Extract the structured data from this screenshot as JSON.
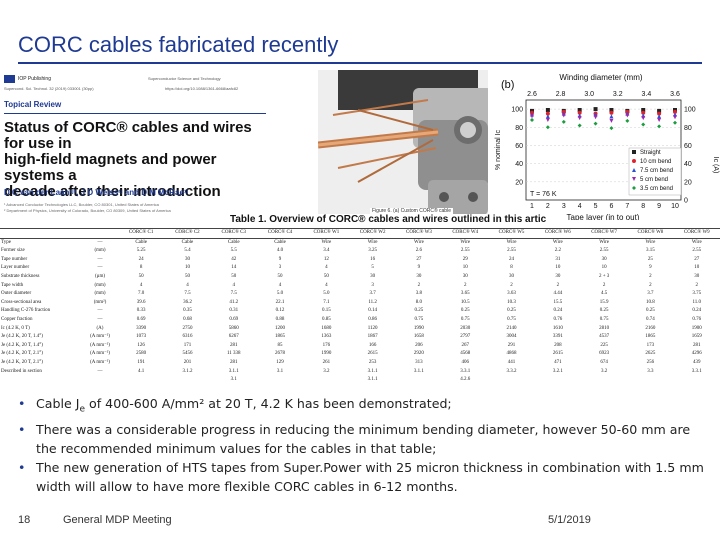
{
  "slide": {
    "title": "CORC cables fabricated recently"
  },
  "paper": {
    "publisher": "IOP Publishing",
    "journal": "Superconductor Science and Technology",
    "reference": "Supercond. Sci. Technol. 32 (2019) 033001 (30pp)",
    "doi": "https://doi.org/10.1088/1361-6668/aafc82",
    "section": "Topical Review",
    "title_lines": [
      "Status of CORC® cables and wires for use in",
      "high-field magnets and power systems a",
      "decade after their introduction"
    ],
    "authors": "D C van der Laan¹ʲ³, J D Weiss¹ʲ and D M McRae¹ʲ",
    "affiliations": [
      "¹ Advanced Conductor Technologies LLC, Boulder, CO 80301, United States of America",
      "² Department of Physics, University of Colorado, Boulder, CO 80309, United States of America"
    ]
  },
  "figure_caption": "Figure 6. (a) Custom CORC® cable",
  "table_title": "Table 1. Overview of CORC® cables and wires outlined in this artic",
  "table": {
    "headers": [
      "",
      "",
      "CORC® C1",
      "CORC® C2",
      "CORC® C3",
      "CORC® C4",
      "CORC® W1",
      "CORC® W2",
      "CORC® W3",
      "CORC® W4",
      "CORC® W5",
      "CORC® W6",
      "CORC® W7",
      "CORC® W8",
      "CORC® W9"
    ],
    "rows": [
      [
        "Type",
        "—",
        "Cable",
        "Cable",
        "Cable",
        "Cable",
        "Wire",
        "Wire",
        "Wire",
        "Wire",
        "Wire",
        "Wire",
        "Wire",
        "Wire",
        "Wire"
      ],
      [
        "Former size",
        "(mm)",
        "5.25",
        "5.4",
        "5.5",
        "4.0",
        "3.4",
        "3.25",
        "2.6",
        "2.55",
        "2.55",
        "2.2",
        "2.55",
        "3.15",
        "2.55"
      ],
      [
        "Tape number",
        "—",
        "24",
        "30",
        "42",
        "9",
        "12",
        "16",
        "27",
        "29",
        "24",
        "31",
        "30",
        "25",
        "27"
      ],
      [
        "Layer number",
        "—",
        "8",
        "10",
        "14",
        "3",
        "4",
        "5",
        "9",
        "10",
        "8",
        "10",
        "10",
        "9",
        "10"
      ],
      [
        "Substrate thickness",
        "(µm)",
        "50",
        "50",
        "50",
        "50",
        "50",
        "30",
        "30",
        "30",
        "30",
        "30",
        "2 + 3",
        "2",
        "30"
      ],
      [
        "Tape width",
        "(mm)",
        "4",
        "4",
        "4",
        "4",
        "4",
        "3",
        "2",
        "2",
        "2",
        "2",
        "2",
        "2",
        "2"
      ],
      [
        "Outer diameter",
        "(mm)",
        "7.0",
        "7.5",
        "7.5",
        "5.0",
        "5.0",
        "3.7",
        "3.8",
        "3.65",
        "3.63",
        "4.44",
        "4.5",
        "3.7",
        "3.75"
      ],
      [
        "Cross-sectional area",
        "(mm²)",
        "39.6",
        "36.2",
        "41.2",
        "22.1",
        "7.1",
        "11.2",
        "8.0",
        "10.5",
        "10.3",
        "15.5",
        "15.9",
        "10.8",
        "11.0"
      ],
      [
        "Handling C-276 fraction",
        "—",
        "0.33",
        "0.35",
        "0.31",
        "0.12",
        "0.15",
        "0.14",
        "0.25",
        "0.25",
        "0.25",
        "0.24",
        "0.25",
        "0.25",
        "0.24"
      ],
      [
        "Copper fraction",
        "—",
        "0.69",
        "0.68",
        "0.69",
        "0.88",
        "0.85",
        "0.86",
        "0.75",
        "0.75",
        "0.75",
        "0.76",
        "0.75",
        "0.74",
        "0.76"
      ],
      [
        "Ic (4.2 K, 0 T)",
        "(A)",
        "3390",
        "2750",
        "5860",
        "1200",
        "1680",
        "1120",
        "1990",
        "2030",
        "2140",
        "1610",
        "2810",
        "2160",
        "1900"
      ],
      [
        "Je (4.2 K, 20 T, 1.4°)",
        "(A mm⁻²)",
        "1073",
        "6316",
        "6267",
        "1865",
        "1363",
        "1867",
        "1658",
        "2797",
        "3004",
        "3391",
        "4537",
        "1865",
        "1659"
      ],
      [
        "Je (4.2 K, 20 T, 1.4°)",
        "(A mm⁻²)",
        "126",
        "171",
        "281",
        "85",
        "176",
        "166",
        "206",
        "267",
        "291",
        "208",
        "225",
        "173",
        "281"
      ],
      [
        "Je (4.2 K, 20 T, 2.1°)",
        "(A mm⁻²)",
        "2580",
        "5456",
        "11 338",
        "2678",
        "1990",
        "2615",
        "2920",
        "4568",
        "4868",
        "2615",
        "6923",
        "2625",
        "4296"
      ],
      [
        "Je (4.2 K, 20 T, 2.1°)",
        "(A mm⁻²)",
        "191",
        "201",
        "281",
        "129",
        "261",
        "253",
        "313",
        "406",
        "441",
        "471",
        "674",
        "256",
        "439"
      ],
      [
        "Described in section",
        "—",
        "4.1",
        "3.1.2",
        "3.1.1",
        "3.1",
        "3.2",
        "3.1.1",
        "3.1.1",
        "3.3.1",
        "3.3.2",
        "3.2.1",
        "3.2",
        "3.3",
        "3.3.1"
      ],
      [
        "",
        "",
        "",
        "",
        "3.1",
        "",
        "",
        "3.1.1",
        "",
        "4.2.6",
        "",
        "",
        "",
        "",
        ""
      ],
      [
        "",
        "",
        "",
        "",
        "5.1",
        "",
        "",
        "3.3",
        "",
        "3.3.1",
        "",
        "",
        "",
        "",
        ""
      ],
      [
        "Preferred measurement",
        "—",
        "A",
        "B",
        "D",
        "E",
        "F",
        "E, G",
        "C, H, I",
        "E, F",
        "F, I",
        "F",
        "F",
        "C, H",
        "J"
      ]
    ]
  },
  "chart_data": {
    "type": "scatter",
    "panel_label": "(b)",
    "top_axis_title": "Winding diameter (mm)",
    "top_ticks": [
      "2.6",
      "2.8",
      "3.0",
      "3.2",
      "3.4",
      "3.6"
    ],
    "x_ticks": [
      "1",
      "2",
      "3",
      "4",
      "5",
      "6",
      "7",
      "8",
      "9",
      "10"
    ],
    "xlabel": "Tape layer (in to out)",
    "ylabel_left": "% nominal Ic",
    "ylabel_right": "Ic (A)",
    "y_ticks_left": [
      "20",
      "40",
      "60",
      "80",
      "100"
    ],
    "y_ticks_right": [
      "0",
      "20",
      "40",
      "60",
      "80",
      "100"
    ],
    "annotation": "T = 76 K",
    "xlim": [
      1,
      10
    ],
    "ylim": [
      0,
      110
    ],
    "legend_position": "right",
    "series": [
      {
        "name": "Straight",
        "color": "#222222",
        "symbol": "square",
        "x": [
          1,
          2,
          3,
          4,
          5,
          6,
          7,
          8,
          9,
          10
        ],
        "y": [
          98,
          99,
          98,
          99,
          100,
          99,
          98,
          99,
          98,
          99
        ]
      },
      {
        "name": "10 cm bend",
        "color": "#e0232b",
        "symbol": "circle",
        "x": [
          1,
          2,
          3,
          4,
          5,
          6,
          7,
          8,
          9,
          10
        ],
        "y": [
          96,
          95,
          97,
          96,
          95,
          96,
          97,
          96,
          95,
          97
        ]
      },
      {
        "name": "7.5 cm bend",
        "color": "#2b4fd6",
        "symbol": "triangle",
        "x": [
          1,
          2,
          3,
          4,
          5,
          6,
          7,
          8,
          9,
          10
        ],
        "y": [
          94,
          92,
          95,
          93,
          94,
          92,
          95,
          93,
          92,
          94
        ]
      },
      {
        "name": "5 cm bend",
        "color": "#9c27b0",
        "symbol": "triangle-down",
        "x": [
          1,
          2,
          3,
          4,
          5,
          6,
          7,
          8,
          9,
          10
        ],
        "y": [
          92,
          88,
          93,
          90,
          91,
          87,
          93,
          90,
          88,
          91
        ]
      },
      {
        "name": "3.5 cm bend",
        "color": "#1b9e3e",
        "symbol": "diamond",
        "x": [
          1,
          2,
          3,
          4,
          5,
          6,
          7,
          8,
          9,
          10
        ],
        "y": [
          88,
          80,
          86,
          82,
          84,
          79,
          87,
          83,
          81,
          85
        ]
      }
    ]
  },
  "bullets": [
    {
      "lead": "Cable J",
      "sub": "e",
      "rest": " of 400-600 A/mm² at 20 T, 4.2 K has been demonstrated;"
    },
    {
      "lead": "There was a considerable progress in reducing the minimum bending diameter, however 50-60 mm are the recommended minimum values for the cables in that table;",
      "sub": "",
      "rest": ""
    },
    {
      "lead": "The new generation of HTS tapes from Super.Power with 25 micron thickness in combination with 1.5 mm width will allow to have more flexible CORC cables in 6-12 months.",
      "sub": "",
      "rest": ""
    }
  ],
  "footer": {
    "slide_number": "18",
    "meeting": "General MDP Meeting",
    "date": "5/1/2019"
  },
  "colors": {
    "title": "#1f3a93",
    "accent": "#1f3a93"
  }
}
